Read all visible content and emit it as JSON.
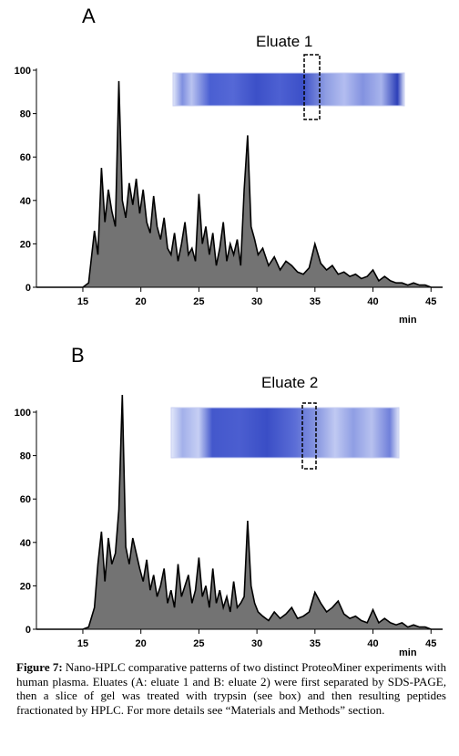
{
  "panel_a": {
    "letter": "A",
    "gel_title": "Eluate 1",
    "x_unit": "min",
    "x_ticks": [
      "15",
      "20",
      "25",
      "30",
      "35",
      "40",
      "45"
    ],
    "y_ticks": [
      "0",
      "20",
      "40",
      "60",
      "80",
      "100"
    ]
  },
  "panel_b": {
    "letter": "B",
    "gel_title": "Eluate 2",
    "x_unit": "min",
    "x_ticks": [
      "15",
      "20",
      "25",
      "30",
      "35",
      "40",
      "45"
    ],
    "y_ticks": [
      "0",
      "20",
      "40",
      "60",
      "80",
      "100"
    ]
  },
  "caption": {
    "label": "Figure 7:",
    "text": "Nano-HPLC comparative patterns of two distinct ProteoMiner experiments with human plasma. Eluates (A: eluate 1 and B: eluate 2) were first separated by SDS-PAGE, then a slice of gel was treated with trypsin (see box) and then resulting peptides fractionated by HPLC. For more details see “Materials and Methods” section."
  },
  "colors": {
    "trace": "#000000",
    "gel_band": "#3b4fc9",
    "gel_light": "#c9d1f2"
  },
  "chart_data": [
    {
      "type": "line",
      "title": "Eluate 1",
      "xlabel": "min",
      "ylabel": "",
      "xlim": [
        11,
        46
      ],
      "ylim": [
        0,
        100
      ],
      "x": [
        11,
        15,
        15.5,
        16,
        16.3,
        16.6,
        16.9,
        17.2,
        17.5,
        17.8,
        18.1,
        18.4,
        18.7,
        19.0,
        19.3,
        19.6,
        19.9,
        20.2,
        20.5,
        20.8,
        21.1,
        21.4,
        21.7,
        22.0,
        22.3,
        22.6,
        22.9,
        23.2,
        23.5,
        23.8,
        24.1,
        24.4,
        24.7,
        25.0,
        25.3,
        25.6,
        25.9,
        26.2,
        26.5,
        26.8,
        27.1,
        27.4,
        27.7,
        28.0,
        28.3,
        28.6,
        28.9,
        29.2,
        29.5,
        29.8,
        30.1,
        30.5,
        31.0,
        31.5,
        32.0,
        32.5,
        33.0,
        33.5,
        34.0,
        34.5,
        35.0,
        35.5,
        36.0,
        36.5,
        37.0,
        37.5,
        38.0,
        38.5,
        39.0,
        39.5,
        40.0,
        40.5,
        41.0,
        41.5,
        42.0,
        42.5,
        43.0,
        43.5,
        44.0,
        44.5,
        45.0,
        46
      ],
      "series": [
        {
          "values": [
            0,
            0,
            2,
            26,
            15,
            55,
            30,
            45,
            35,
            28,
            95,
            40,
            32,
            48,
            38,
            50,
            34,
            45,
            30,
            25,
            42,
            28,
            22,
            32,
            18,
            15,
            25,
            12,
            20,
            30,
            15,
            18,
            12,
            43,
            20,
            28,
            15,
            25,
            10,
            18,
            30,
            12,
            20,
            15,
            22,
            10,
            45,
            70,
            28,
            22,
            15,
            18,
            10,
            14,
            8,
            12,
            10,
            7,
            6,
            9,
            20,
            11,
            8,
            10,
            6,
            7,
            5,
            6,
            4,
            5,
            8,
            3,
            5,
            3,
            2,
            2,
            1,
            2,
            1,
            1,
            0,
            0
          ]
        }
      ]
    },
    {
      "type": "line",
      "title": "Eluate 2",
      "xlabel": "min",
      "ylabel": "",
      "xlim": [
        11,
        46
      ],
      "ylim": [
        0,
        100
      ],
      "x": [
        11,
        15,
        15.5,
        16,
        16.3,
        16.6,
        16.9,
        17.2,
        17.5,
        17.8,
        18.1,
        18.4,
        18.7,
        19.0,
        19.3,
        19.6,
        19.9,
        20.2,
        20.5,
        20.8,
        21.1,
        21.4,
        21.7,
        22.0,
        22.3,
        22.6,
        22.9,
        23.2,
        23.5,
        23.8,
        24.1,
        24.4,
        24.7,
        25.0,
        25.3,
        25.6,
        25.9,
        26.2,
        26.5,
        26.8,
        27.1,
        27.4,
        27.7,
        28.0,
        28.3,
        28.6,
        28.9,
        29.2,
        29.5,
        29.8,
        30.1,
        30.5,
        31.0,
        31.5,
        32.0,
        32.5,
        33.0,
        33.5,
        34.0,
        34.5,
        35.0,
        35.5,
        36.0,
        36.5,
        37.0,
        37.5,
        38.0,
        38.5,
        39.0,
        39.5,
        40.0,
        40.5,
        41.0,
        41.5,
        42.0,
        42.5,
        43.0,
        43.5,
        44.0,
        44.5,
        45.0,
        46
      ],
      "series": [
        {
          "values": [
            0,
            0,
            1,
            10,
            30,
            45,
            22,
            42,
            30,
            35,
            55,
            108,
            38,
            30,
            42,
            35,
            28,
            22,
            32,
            18,
            25,
            15,
            20,
            28,
            12,
            18,
            10,
            30,
            15,
            20,
            25,
            12,
            18,
            33,
            15,
            20,
            10,
            28,
            12,
            18,
            10,
            15,
            8,
            22,
            10,
            12,
            15,
            50,
            20,
            12,
            8,
            6,
            4,
            8,
            5,
            7,
            10,
            5,
            6,
            8,
            17,
            12,
            8,
            10,
            13,
            7,
            5,
            6,
            4,
            3,
            9,
            3,
            5,
            3,
            2,
            3,
            1,
            2,
            1,
            1,
            0,
            0
          ]
        }
      ]
    }
  ]
}
